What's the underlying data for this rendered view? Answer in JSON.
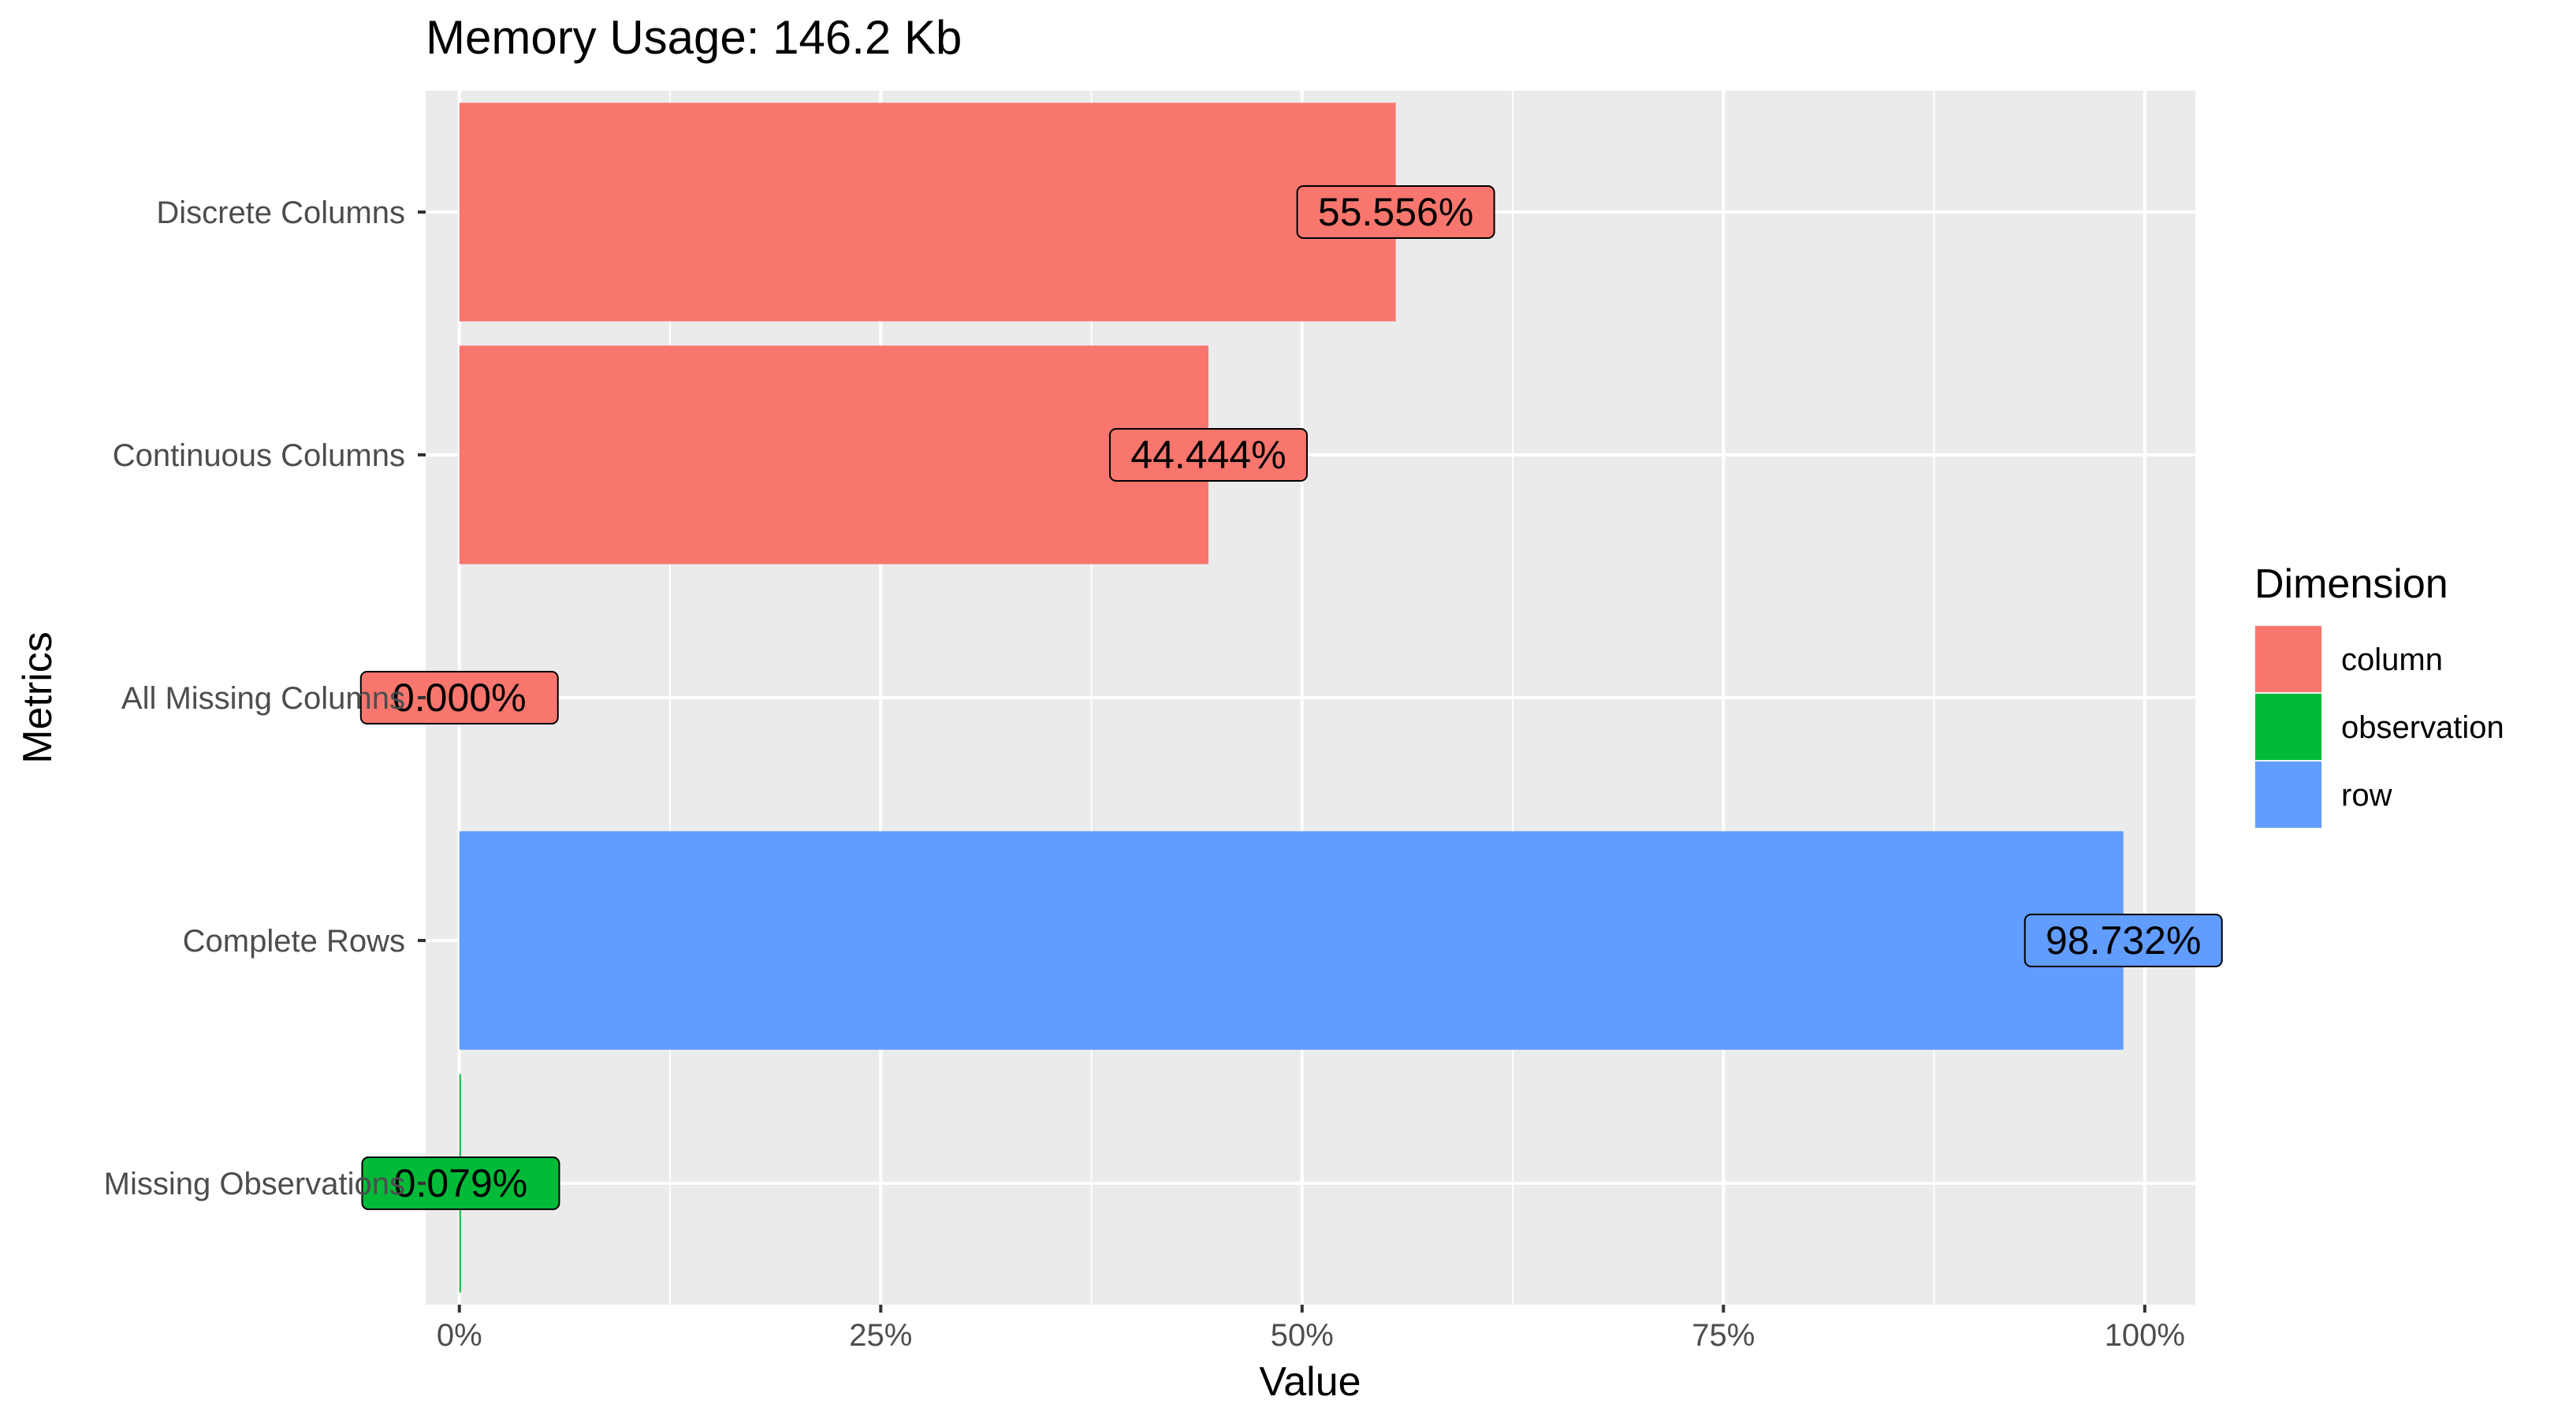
{
  "chart_data": {
    "type": "bar",
    "orientation": "horizontal",
    "title": "Memory Usage: 146.2 Kb",
    "xlabel": "Value",
    "ylabel": "Metrics",
    "xlim": [
      -0.02,
      1.03
    ],
    "x_ticks": [
      0,
      0.25,
      0.5,
      0.75,
      1.0
    ],
    "x_tick_labels": [
      "0%",
      "25%",
      "50%",
      "75%",
      "100%"
    ],
    "categories": [
      "Discrete Columns",
      "Continuous Columns",
      "All Missing Columns",
      "Complete Rows",
      "Missing Observations"
    ],
    "values": [
      0.55556,
      0.44444,
      0.0,
      0.98732,
      0.00079
    ],
    "value_labels": [
      "55.556%",
      "44.444%",
      "0.000%",
      "98.732%",
      "0.079%"
    ],
    "dimension": [
      "column",
      "column",
      "column",
      "row",
      "observation"
    ],
    "legend": {
      "title": "Dimension",
      "position": "right",
      "entries": [
        {
          "name": "column",
          "color": "#F8766D"
        },
        {
          "name": "observation",
          "color": "#00BA38"
        },
        {
          "name": "row",
          "color": "#619CFF"
        }
      ]
    },
    "panel_background": "#EBEBEB",
    "grid": true
  }
}
